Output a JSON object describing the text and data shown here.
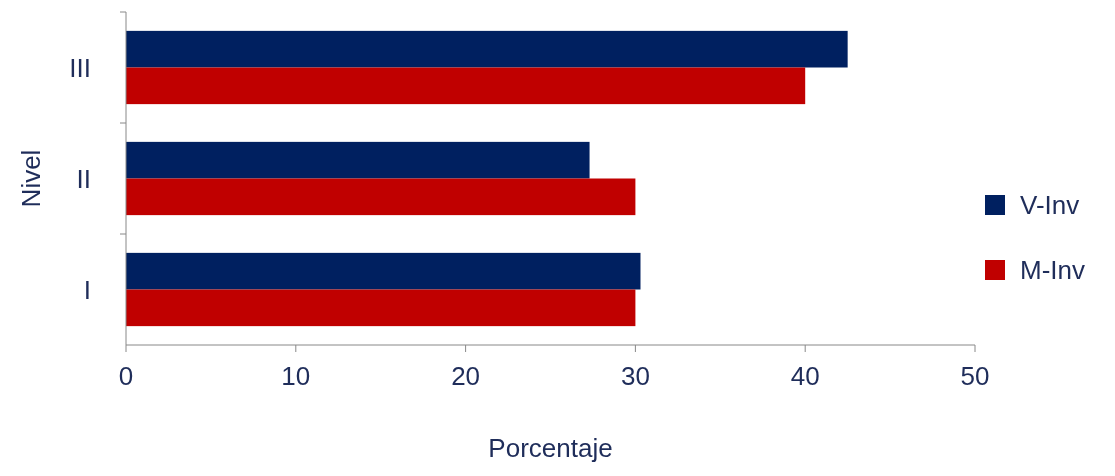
{
  "chart_data": {
    "type": "bar",
    "orientation": "horizontal",
    "xlabel": "Porcentaje",
    "ylabel": "Nivel",
    "categories": [
      "III",
      "II",
      "I"
    ],
    "series": [
      {
        "name": "V-Inv",
        "color": "#002060",
        "values": [
          42.5,
          27.3,
          30.3
        ]
      },
      {
        "name": "M-Inv",
        "color": "#c00000",
        "values": [
          40,
          30,
          30
        ]
      }
    ],
    "xlim": [
      0,
      50
    ],
    "xticks": [
      0,
      10,
      20,
      30,
      40,
      50
    ],
    "grid": false,
    "legend": "right"
  }
}
